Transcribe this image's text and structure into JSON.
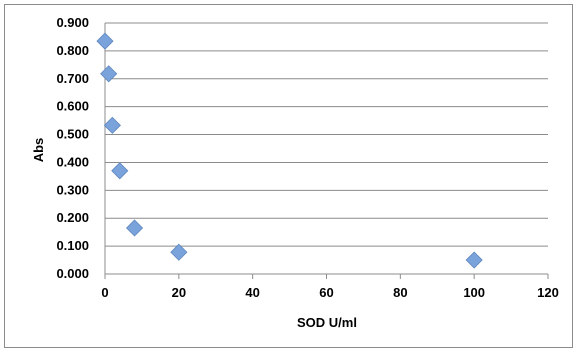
{
  "chart_data": {
    "type": "scatter",
    "title": "",
    "xlabel": "SOD U/ml",
    "ylabel": "Abs",
    "xlim": [
      0,
      120
    ],
    "ylim": [
      0,
      0.9
    ],
    "x_ticks": [
      "0",
      "20",
      "40",
      "60",
      "80",
      "100",
      "120"
    ],
    "y_ticks": [
      "0.000",
      "0.100",
      "0.200",
      "0.300",
      "0.400",
      "0.500",
      "0.600",
      "0.700",
      "0.800",
      "0.900"
    ],
    "grid": "horizontal",
    "legend": "none",
    "marker": "diamond",
    "marker_color": "#7aa3db",
    "series": [
      {
        "x": [
          0,
          1,
          2,
          4,
          8,
          20,
          100
        ],
        "y": [
          0.835,
          0.718,
          0.533,
          0.37,
          0.165,
          0.078,
          0.05
        ]
      }
    ]
  }
}
